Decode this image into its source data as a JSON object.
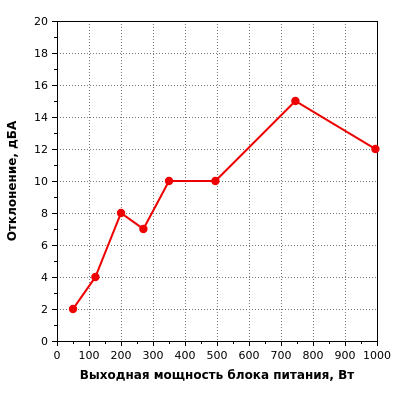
{
  "chart_data": {
    "type": "line",
    "title": "",
    "xlabel": "Выходная мощность блока питания, Вт",
    "ylabel": "Отклонение, дБА",
    "xlim": [
      0,
      1000
    ],
    "ylim": [
      0,
      20
    ],
    "x_ticks": [
      0,
      100,
      200,
      300,
      400,
      500,
      600,
      700,
      800,
      900,
      1000
    ],
    "y_ticks": [
      0,
      2,
      4,
      6,
      8,
      10,
      12,
      14,
      16,
      18,
      20
    ],
    "x_minor_step": 50,
    "y_minor_step": 1,
    "grid": true,
    "grid_style": "dotted",
    "series": [
      {
        "color": "#ee0000",
        "x": [
          50,
          120,
          200,
          270,
          350,
          495,
          745,
          995
        ],
        "y": [
          2,
          4,
          8,
          7,
          10,
          10,
          15,
          12
        ]
      }
    ]
  }
}
